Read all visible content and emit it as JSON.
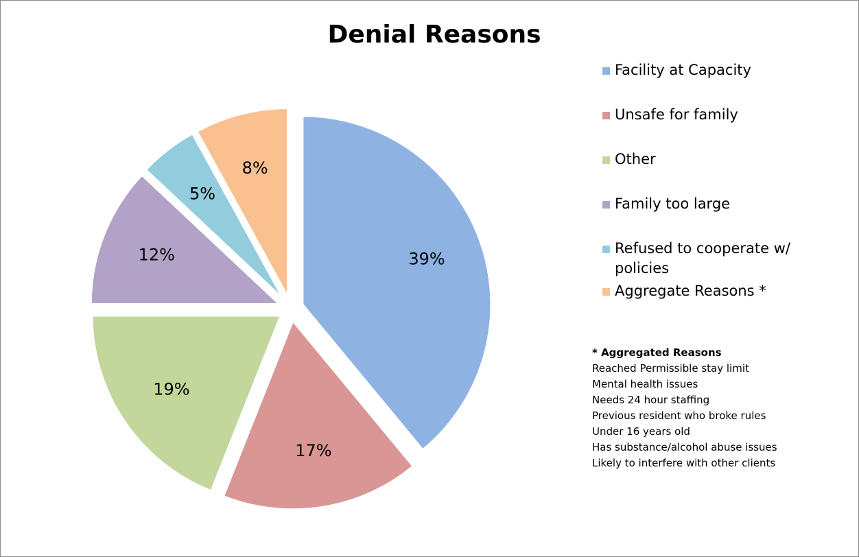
{
  "chart_data": {
    "type": "pie",
    "title": "Denial Reasons",
    "categories": [
      "Facility at Capacity",
      "Unsafe for family",
      "Other",
      "Family too large",
      "Refused to cooperate w/ policies",
      "Aggregate Reasons *"
    ],
    "values": [
      39,
      17,
      19,
      12,
      5,
      8
    ],
    "data_labels": [
      "39%",
      "17%",
      "19%",
      "12%",
      "5%",
      "8%"
    ],
    "colors": [
      "#8eb3e2",
      "#d99694",
      "#c3d69b",
      "#b2a2c7",
      "#93cddd",
      "#fac090"
    ],
    "legend_position": "right",
    "exploded": true
  },
  "legend": {
    "items": [
      "Facility at Capacity",
      "Unsafe for family",
      "Other",
      "Family too large",
      "Refused to cooperate w/ policies",
      "Aggregate Reasons *"
    ]
  },
  "note": {
    "title": "* Aggregated Reasons",
    "lines": [
      "Reached Permissible stay limit",
      "Mental health issues",
      "Needs 24 hour staffing",
      "Previous resident who broke rules",
      "Under 16 years old",
      "Has substance/alcohol abuse issues",
      "Likely to interfere with other clients"
    ]
  }
}
